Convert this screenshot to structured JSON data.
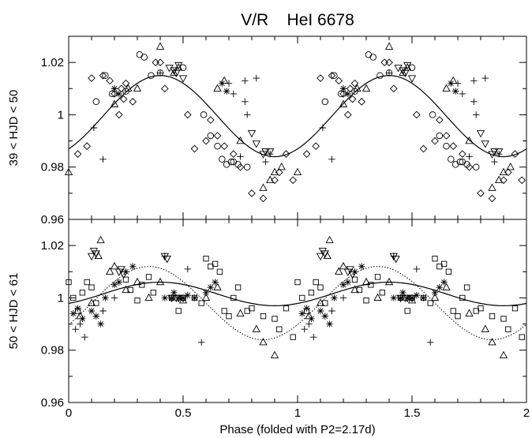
{
  "chart_data": {
    "type": "scatter",
    "title": "V/R    HeI 6678",
    "xlabel": "Phase (folded with P2=2.17d)",
    "xlim": [
      0,
      2
    ],
    "x_ticks": [
      "0",
      "0.5",
      "1",
      "1.5",
      "2"
    ],
    "x_tick_values": [
      0,
      0.5,
      1,
      1.5,
      2
    ],
    "y_ticks": [
      "0.96",
      "0.98",
      "1",
      "1.02"
    ],
    "y_tick_values": [
      0.96,
      0.98,
      1.0,
      1.02
    ],
    "panels": [
      {
        "ylabel": "39 < HJD < 50",
        "ylim": [
          0.96,
          1.03
        ],
        "fit_curves": [
          {
            "style": "solid",
            "mean": 0.9995,
            "amplitude": 0.0155,
            "peak_phase": 0.4
          }
        ],
        "series": [
          {
            "marker": "diamond",
            "x": [
              0.04,
              0.08,
              0.1,
              0.15,
              0.18,
              0.2,
              0.22,
              0.23,
              0.24,
              0.25,
              0.28,
              0.38,
              0.4,
              0.42,
              0.52,
              0.55,
              0.6,
              0.62,
              0.65,
              0.68,
              0.72,
              0.75,
              0.8,
              0.85,
              0.9,
              0.92,
              0.95,
              0.98
            ],
            "y": [
              0.985,
              0.988,
              1.014,
              1.015,
              1.013,
              1.008,
              1.0,
              1.01,
              1.006,
              1.012,
              1.005,
              1.02,
              1.02,
              1.01,
              1.0,
              0.987,
              0.99,
              0.998,
              0.992,
              0.988,
              0.985,
              0.98,
              0.97,
              0.968,
              0.975,
              0.978,
              0.985,
              0.975
            ]
          },
          {
            "marker": "circle",
            "x": [
              0.12,
              0.16,
              0.19,
              0.25,
              0.31,
              0.33,
              0.36,
              0.4,
              0.5,
              0.59,
              0.62,
              0.65,
              0.67,
              0.69,
              0.71,
              0.72,
              0.74,
              0.78
            ],
            "y": [
              1.005,
              1.015,
              1.008,
              1.009,
              1.023,
              1.022,
              1.015,
              1.016,
              1.018,
              1.0,
              0.992,
              0.988,
              0.983,
              0.981,
              0.982,
              0.982,
              0.981,
              0.98
            ]
          },
          {
            "marker": "triangle-up",
            "x": [
              0.0,
              0.2,
              0.26,
              0.3,
              0.4,
              0.46,
              0.48,
              0.65,
              0.68,
              0.75,
              0.85,
              0.88,
              0.9,
              0.93
            ],
            "y": [
              0.978,
              1.004,
              1.01,
              1.01,
              1.026,
              1.016,
              1.018,
              1.01,
              1.013,
              0.99,
              0.972,
              0.975,
              0.978,
              0.98
            ]
          },
          {
            "marker": "triangle-down",
            "x": [
              0.44,
              0.46,
              0.47,
              0.48,
              0.5,
              0.8,
              0.82,
              0.85,
              0.86,
              0.88
            ],
            "y": [
              1.018,
              1.017,
              1.016,
              1.019,
              1.014,
              0.993,
              0.989,
              0.985,
              0.986,
              0.986
            ]
          },
          {
            "marker": "plus",
            "x": [
              0.11,
              0.15,
              0.2,
              0.4,
              0.7,
              0.72,
              0.75,
              0.77,
              0.77,
              0.78,
              0.82,
              0.86,
              0.88
            ],
            "y": [
              0.995,
              0.983,
              1.01,
              1.016,
              1.012,
              1.008,
              0.984,
              1.013,
              1.005,
              1.0,
              1.014,
              0.982,
              0.985
            ]
          },
          {
            "marker": "asterisk",
            "x": [
              0.2,
              0.22,
              0.67,
              0.69
            ],
            "y": [
              1.01,
              1.008,
              1.012,
              1.009
            ]
          }
        ]
      },
      {
        "ylabel": "50 < HJD < 61",
        "ylim": [
          0.96,
          1.03
        ],
        "fit_curves": [
          {
            "style": "solid",
            "mean": 1.0015,
            "amplitude": 0.0045,
            "peak_phase": 0.4
          },
          {
            "style": "dotted",
            "mean": 0.998,
            "amplitude": 0.014,
            "peak_phase": 0.35
          }
        ],
        "series": [
          {
            "marker": "square",
            "x": [
              0.0,
              0.02,
              0.04,
              0.06,
              0.08,
              0.1,
              0.12,
              0.25,
              0.27,
              0.3,
              0.32,
              0.35,
              0.37,
              0.45,
              0.48,
              0.5,
              0.55,
              0.58,
              0.6,
              0.62,
              0.64,
              0.66,
              0.68,
              0.7,
              0.72,
              0.74,
              0.78,
              0.8,
              0.85,
              0.9,
              0.92,
              0.95,
              0.98
            ],
            "y": [
              1.006,
              1.0,
              0.995,
              1.002,
              1.006,
              1.004,
              0.998,
              1.007,
              1.003,
              0.999,
              1.005,
              1.008,
              1.002,
              1.0,
              0.995,
              1.0,
              1.0,
              0.998,
              1.015,
              1.012,
              1.013,
              1.01,
              0.995,
              0.993,
              1.0,
              1.004,
              0.995,
              0.996,
              0.993,
              0.992,
              0.988,
              0.996,
              0.985
            ]
          },
          {
            "marker": "triangle-up",
            "x": [
              0.05,
              0.1,
              0.13,
              0.14,
              0.18,
              0.2,
              0.25,
              0.3,
              0.35,
              0.4,
              0.5,
              0.6,
              0.65,
              0.75,
              0.82,
              0.85,
              0.9
            ],
            "y": [
              0.993,
              0.998,
              1.016,
              1.022,
              1.01,
              1.012,
              1.003,
              1.006,
              1.0,
              1.006,
              0.999,
              1.0,
              1.004,
              0.994,
              0.988,
              0.983,
              0.978
            ]
          },
          {
            "marker": "triangle-down",
            "x": [
              0.1,
              0.11,
              0.12,
              0.22,
              0.23,
              0.24,
              0.42,
              0.43,
              0.45,
              0.47,
              0.48,
              0.5
            ],
            "y": [
              1.016,
              1.018,
              1.017,
              1.01,
              1.011,
              1.009,
              1.016,
              1.015,
              1.0,
              1.0,
              1.0,
              1.0
            ]
          },
          {
            "marker": "asterisk",
            "x": [
              0.02,
              0.04,
              0.06,
              0.1,
              0.12,
              0.14,
              0.16,
              0.2,
              0.22,
              0.25,
              0.28,
              0.42,
              0.45,
              0.46,
              0.48,
              0.5,
              0.52,
              0.55,
              0.6,
              0.62,
              0.64
            ],
            "y": [
              0.994,
              0.996,
              0.992,
              0.995,
              0.993,
              0.99,
              1.0,
              1.005,
              1.006,
              1.01,
              1.012,
              1.0,
              1.0,
              1.002,
              1.0,
              1.0,
              1.001,
              1.0,
              1.002,
              1.004,
              1.006
            ]
          },
          {
            "marker": "plus",
            "x": [
              0.03,
              0.05,
              0.07,
              0.15,
              0.2,
              0.42,
              0.52,
              0.58
            ],
            "y": [
              0.988,
              0.99,
              0.985,
              0.995,
              1.0,
              1.016,
              1.011,
              0.983
            ]
          }
        ]
      }
    ]
  }
}
